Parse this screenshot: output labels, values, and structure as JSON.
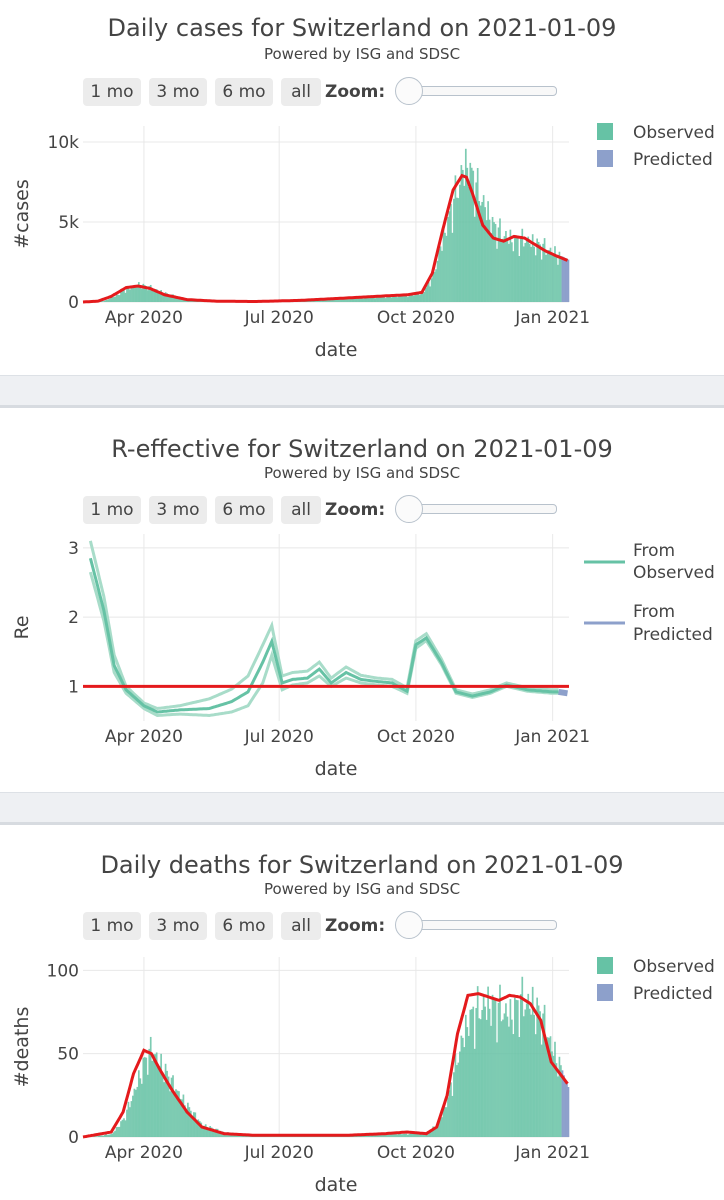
{
  "buttons": [
    "1 mo",
    "3 mo",
    "6 mo",
    "all"
  ],
  "zoom_label": "Zoom:",
  "colors": {
    "observed": "#66c2a5",
    "predicted": "#8da0cb",
    "smooth": "#e41a1c",
    "grid": "#e8e8e8"
  },
  "panels": [
    {
      "title": "Daily cases for Switzerland on 2021-01-09",
      "subtitle": "Powered by ISG and SDSC",
      "legend": [
        "Observed",
        "Predicted"
      ]
    },
    {
      "title": "R-effective for Switzerland on 2021-01-09",
      "subtitle": "Powered by ISG and SDSC",
      "legend": [
        "From Observed",
        "From Predicted"
      ]
    },
    {
      "title": "Daily deaths for Switzerland on 2021-01-09",
      "subtitle": "Powered by ISG and SDSC",
      "legend": [
        "Observed",
        "Predicted"
      ]
    }
  ],
  "chart_data": [
    {
      "type": "bar",
      "title": "Daily cases for Switzerland on 2021-01-09",
      "xlabel": "date",
      "ylabel": "#cases",
      "x_range": [
        "2020-02-20",
        "2021-01-12"
      ],
      "ylim": [
        0,
        11000
      ],
      "y_ticks": [
        0,
        5000,
        10000
      ],
      "y_tick_labels": [
        "0",
        "5k",
        "10k"
      ],
      "x_ticks": [
        "2020-04-01",
        "2020-07-01",
        "2020-10-01",
        "2021-01-01"
      ],
      "x_tick_labels": [
        "Apr 2020",
        "Jul 2020",
        "Oct 2020",
        "Jan 2021"
      ],
      "grid": true,
      "legend_position": "top-right",
      "series": [
        {
          "name": "Observed",
          "kind": "bar",
          "dates": [
            "2020-02-25",
            "2020-03-05",
            "2020-03-12",
            "2020-03-20",
            "2020-03-28",
            "2020-04-05",
            "2020-04-15",
            "2020-04-30",
            "2020-05-20",
            "2020-06-15",
            "2020-07-15",
            "2020-08-15",
            "2020-09-10",
            "2020-09-25",
            "2020-10-05",
            "2020-10-12",
            "2020-10-19",
            "2020-10-26",
            "2020-11-01",
            "2020-11-04",
            "2020-11-08",
            "2020-11-15",
            "2020-11-22",
            "2020-11-29",
            "2020-12-06",
            "2020-12-13",
            "2020-12-20",
            "2020-12-27",
            "2021-01-03",
            "2021-01-06"
          ],
          "values": [
            0,
            80,
            400,
            900,
            1200,
            1000,
            600,
            150,
            40,
            20,
            100,
            250,
            350,
            450,
            600,
            1800,
            4500,
            7000,
            9000,
            9500,
            8500,
            6800,
            5200,
            4600,
            4200,
            4300,
            4000,
            3700,
            3300,
            3000
          ]
        },
        {
          "name": "Predicted",
          "kind": "bar",
          "dates": [
            "2021-01-07",
            "2021-01-08",
            "2021-01-09",
            "2021-01-10",
            "2021-01-11"
          ],
          "values": [
            2850,
            2800,
            2750,
            2700,
            2650
          ]
        },
        {
          "name": "Smoothed",
          "kind": "line",
          "dates": [
            "2020-02-20",
            "2020-03-01",
            "2020-03-10",
            "2020-03-20",
            "2020-03-28",
            "2020-04-05",
            "2020-04-15",
            "2020-04-30",
            "2020-05-20",
            "2020-06-15",
            "2020-07-15",
            "2020-08-15",
            "2020-09-10",
            "2020-09-25",
            "2020-10-05",
            "2020-10-12",
            "2020-10-19",
            "2020-10-26",
            "2020-11-01",
            "2020-11-04",
            "2020-11-08",
            "2020-11-15",
            "2020-11-22",
            "2020-11-29",
            "2020-12-06",
            "2020-12-13",
            "2020-12-20",
            "2020-12-27",
            "2021-01-03",
            "2021-01-11"
          ],
          "values": [
            0,
            50,
            350,
            900,
            1000,
            850,
            450,
            150,
            50,
            30,
            100,
            250,
            380,
            450,
            600,
            1800,
            4500,
            7000,
            7900,
            7800,
            6800,
            4800,
            4000,
            3800,
            4100,
            4000,
            3600,
            3200,
            2900,
            2600
          ]
        }
      ]
    },
    {
      "type": "line",
      "title": "R-effective for Switzerland on 2021-01-09",
      "xlabel": "date",
      "ylabel": "Re",
      "x_range": [
        "2020-02-20",
        "2021-01-12"
      ],
      "ylim": [
        0.5,
        3.2
      ],
      "y_ticks": [
        1,
        2,
        3
      ],
      "y_tick_labels": [
        "1",
        "2",
        "3"
      ],
      "x_ticks": [
        "2020-04-01",
        "2020-07-01",
        "2020-10-01",
        "2021-01-01"
      ],
      "x_tick_labels": [
        "Apr 2020",
        "Jul 2020",
        "Oct 2020",
        "Jan 2021"
      ],
      "grid": true,
      "legend_position": "top-right",
      "reference_line": 1,
      "series": [
        {
          "name": "From Observed",
          "dates": [
            "2020-02-25",
            "2020-03-05",
            "2020-03-12",
            "2020-03-20",
            "2020-04-01",
            "2020-04-10",
            "2020-04-25",
            "2020-05-15",
            "2020-05-30",
            "2020-06-10",
            "2020-06-20",
            "2020-06-26",
            "2020-07-03",
            "2020-07-10",
            "2020-07-20",
            "2020-07-28",
            "2020-08-05",
            "2020-08-15",
            "2020-08-25",
            "2020-09-05",
            "2020-09-15",
            "2020-09-25",
            "2020-10-01",
            "2020-10-08",
            "2020-10-18",
            "2020-10-28",
            "2020-11-08",
            "2020-11-20",
            "2020-12-01",
            "2020-12-15",
            "2021-01-01",
            "2021-01-05"
          ],
          "values": [
            2.85,
            2.1,
            1.3,
            0.95,
            0.72,
            0.63,
            0.66,
            0.68,
            0.78,
            0.92,
            1.35,
            1.65,
            1.05,
            1.1,
            1.12,
            1.25,
            1.05,
            1.2,
            1.1,
            1.07,
            1.05,
            0.93,
            1.6,
            1.7,
            1.35,
            0.92,
            0.86,
            0.92,
            1.02,
            0.95,
            0.92,
            0.92
          ],
          "lower": [
            2.65,
            1.95,
            1.2,
            0.9,
            0.68,
            0.58,
            0.6,
            0.58,
            0.63,
            0.72,
            1.05,
            1.45,
            0.95,
            1.02,
            1.05,
            1.15,
            1.0,
            1.12,
            1.05,
            1.02,
            1.0,
            0.9,
            1.55,
            1.66,
            1.32,
            0.9,
            0.84,
            0.9,
            1.0,
            0.93,
            0.9,
            0.9
          ],
          "upper": [
            3.1,
            2.3,
            1.45,
            1.0,
            0.76,
            0.68,
            0.72,
            0.82,
            0.96,
            1.15,
            1.6,
            1.88,
            1.15,
            1.2,
            1.22,
            1.35,
            1.12,
            1.28,
            1.16,
            1.12,
            1.1,
            0.98,
            1.66,
            1.76,
            1.4,
            0.95,
            0.89,
            0.95,
            1.05,
            0.98,
            0.95,
            0.95
          ]
        },
        {
          "name": "From Predicted",
          "dates": [
            "2021-01-05",
            "2021-01-11"
          ],
          "values": [
            0.92,
            0.9
          ]
        }
      ]
    },
    {
      "type": "bar",
      "title": "Daily deaths for Switzerland on 2021-01-09",
      "xlabel": "date",
      "ylabel": "#deaths",
      "x_range": [
        "2020-02-20",
        "2021-01-12"
      ],
      "ylim": [
        0,
        108
      ],
      "y_ticks": [
        0,
        50,
        100
      ],
      "y_tick_labels": [
        "0",
        "50",
        "100"
      ],
      "x_ticks": [
        "2020-04-01",
        "2020-07-01",
        "2020-10-01",
        "2021-01-01"
      ],
      "x_tick_labels": [
        "Apr 2020",
        "Jul 2020",
        "Oct 2020",
        "Jan 2021"
      ],
      "grid": true,
      "legend_position": "top-right",
      "series": [
        {
          "name": "Observed",
          "kind": "bar",
          "dates": [
            "2020-02-25",
            "2020-03-10",
            "2020-03-18",
            "2020-03-25",
            "2020-04-01",
            "2020-04-06",
            "2020-04-12",
            "2020-04-20",
            "2020-04-30",
            "2020-05-10",
            "2020-05-25",
            "2020-06-15",
            "2020-07-15",
            "2020-08-15",
            "2020-09-10",
            "2020-09-25",
            "2020-10-08",
            "2020-10-15",
            "2020-10-22",
            "2020-10-29",
            "2020-11-05",
            "2020-11-12",
            "2020-11-19",
            "2020-11-26",
            "2020-12-03",
            "2020-12-10",
            "2020-12-17",
            "2020-12-24",
            "2020-12-31",
            "2021-01-06"
          ],
          "values": [
            0,
            2,
            12,
            30,
            50,
            58,
            48,
            35,
            20,
            8,
            3,
            1,
            1,
            1,
            2,
            2,
            3,
            8,
            25,
            55,
            78,
            85,
            88,
            85,
            80,
            90,
            88,
            80,
            60,
            45
          ]
        },
        {
          "name": "Predicted",
          "kind": "bar",
          "dates": [
            "2021-01-07",
            "2021-01-08",
            "2021-01-09",
            "2021-01-10",
            "2021-01-11"
          ],
          "values": [
            40,
            37,
            34,
            32,
            30
          ]
        },
        {
          "name": "Smoothed",
          "kind": "line",
          "dates": [
            "2020-02-20",
            "2020-03-10",
            "2020-03-18",
            "2020-03-25",
            "2020-04-01",
            "2020-04-06",
            "2020-04-12",
            "2020-04-20",
            "2020-04-30",
            "2020-05-10",
            "2020-05-25",
            "2020-06-15",
            "2020-07-15",
            "2020-08-15",
            "2020-09-10",
            "2020-09-25",
            "2020-10-08",
            "2020-10-15",
            "2020-10-22",
            "2020-10-29",
            "2020-11-05",
            "2020-11-12",
            "2020-11-19",
            "2020-11-26",
            "2020-12-03",
            "2020-12-10",
            "2020-12-17",
            "2020-12-24",
            "2020-12-31",
            "2021-01-11"
          ],
          "values": [
            0,
            3,
            15,
            38,
            52,
            50,
            40,
            28,
            15,
            6,
            2,
            1,
            1,
            1,
            2,
            3,
            2,
            6,
            25,
            62,
            85,
            86,
            84,
            82,
            85,
            84,
            80,
            70,
            45,
            32
          ]
        }
      ]
    }
  ]
}
